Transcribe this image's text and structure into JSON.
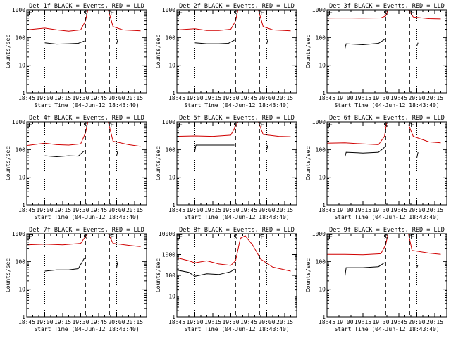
{
  "figure": {
    "time_axis_start": "18:45",
    "marker_labels": {
      "E": "E",
      "S": "S"
    },
    "colors": {
      "events": "#000000",
      "lld": "#d00000",
      "axes": "#000000",
      "background": "#ffffff"
    }
  },
  "chart_data": [
    {
      "type": "line",
      "title": "Det 1f BLACK = Events, RED = LLD",
      "xlabel": "Start Time (04-Jun-12 18:43:40)",
      "ylabel": "Counts/sec",
      "ylog": true,
      "ylim": [
        1,
        1000
      ],
      "x_ticks": [
        "18:45",
        "19:00",
        "19:15",
        "19:30",
        "19:45",
        "20:00",
        "20:15"
      ],
      "markers": {
        "E_start": "18:47",
        "S": "19:34",
        "E_end": "19:54"
      },
      "series": [
        {
          "name": "Events",
          "color": "#000000",
          "points": [
            [
              "19:00",
              65
            ],
            [
              "19:10",
              58
            ],
            [
              "19:20",
              60
            ],
            [
              "19:28",
              62
            ],
            [
              "19:33",
              75
            ]
          ],
          "points_after": [
            [
              "20:00",
              60
            ],
            [
              "20:01",
              85
            ]
          ]
        },
        {
          "name": "LLD",
          "color": "#d00000",
          "points": [
            [
              "18:45",
              190
            ],
            [
              "19:00",
              220
            ],
            [
              "19:10",
              190
            ],
            [
              "19:20",
              170
            ],
            [
              "19:30",
              190
            ],
            [
              "19:34",
              400
            ],
            [
              "19:36",
              1000
            ]
          ],
          "points_after": [
            [
              "19:53",
              1000
            ],
            [
              "19:57",
              250
            ],
            [
              "20:05",
              190
            ],
            [
              "20:20",
              175
            ]
          ]
        }
      ]
    },
    {
      "type": "line",
      "title": "Det 2f BLACK = Events, RED = LLD",
      "xlabel": "Start Time (04-Jun-12 18:43:40)",
      "ylabel": "Counts/sec",
      "ylog": true,
      "ylim": [
        1,
        1000
      ],
      "x_ticks": [
        "18:45",
        "19:00",
        "19:15",
        "19:30",
        "19:45",
        "20:00",
        "20:15"
      ],
      "markers": {
        "E_start": "18:47",
        "S": "19:34",
        "E_end": "19:54"
      },
      "series": [
        {
          "name": "Events",
          "color": "#000000",
          "points": [
            [
              "19:00",
              65
            ],
            [
              "19:10",
              60
            ],
            [
              "19:20",
              60
            ],
            [
              "19:28",
              62
            ],
            [
              "19:33",
              80
            ]
          ],
          "points_after": [
            [
              "20:00",
              60
            ],
            [
              "20:01",
              85
            ]
          ]
        },
        {
          "name": "LLD",
          "color": "#d00000",
          "points": [
            [
              "18:45",
              190
            ],
            [
              "19:00",
              210
            ],
            [
              "19:10",
              180
            ],
            [
              "19:20",
              180
            ],
            [
              "19:30",
              200
            ],
            [
              "19:34",
              400
            ],
            [
              "19:36",
              1000
            ]
          ],
          "points_after": [
            [
              "19:53",
              1000
            ],
            [
              "19:57",
              250
            ],
            [
              "20:05",
              190
            ],
            [
              "20:20",
              175
            ]
          ]
        }
      ]
    },
    {
      "type": "line",
      "title": "Det 3f BLACK = Events, RED = LLD",
      "xlabel": "Start Time (04-Jun-12 18:43:40)",
      "ylabel": "Counts/sec",
      "ylog": true,
      "ylim": [
        1,
        1000
      ],
      "x_ticks": [
        "18:45",
        "19:00",
        "19:15",
        "19:30",
        "19:45",
        "20:00",
        "20:15"
      ],
      "markers": {
        "E_start": "18:47",
        "S": "19:34",
        "E_end": "19:54"
      },
      "series": [
        {
          "name": "Events",
          "color": "#000000",
          "points": [
            [
              "19:00",
              40
            ],
            [
              "19:01",
              60
            ],
            [
              "19:15",
              55
            ],
            [
              "19:28",
              62
            ],
            [
              "19:33",
              85
            ]
          ],
          "points_after": [
            [
              "20:00",
              50
            ],
            [
              "20:01",
              65
            ]
          ]
        },
        {
          "name": "LLD",
          "color": "#d00000",
          "points": [
            [
              "18:45",
              500
            ],
            [
              "19:00",
              510
            ],
            [
              "19:15",
              500
            ],
            [
              "19:30",
              510
            ],
            [
              "19:34",
              600
            ],
            [
              "19:36",
              1000
            ]
          ],
          "points_after": [
            [
              "19:53",
              1000
            ],
            [
              "19:57",
              550
            ],
            [
              "20:10",
              480
            ],
            [
              "20:20",
              470
            ]
          ]
        }
      ]
    },
    {
      "type": "line",
      "title": "Det 4f BLACK = Events, RED = LLD",
      "xlabel": "Start Time (04-Jun-12 18:43:40)",
      "ylabel": "Counts/sec",
      "ylog": true,
      "ylim": [
        1,
        1000
      ],
      "x_ticks": [
        "18:45",
        "19:00",
        "19:15",
        "19:30",
        "19:45",
        "20:00",
        "20:15"
      ],
      "markers": {
        "E_start": "18:47",
        "S": "19:34",
        "E_end": "19:54"
      },
      "series": [
        {
          "name": "Events",
          "color": "#000000",
          "points": [
            [
              "19:00",
              60
            ],
            [
              "19:10",
              55
            ],
            [
              "19:20",
              60
            ],
            [
              "19:28",
              58
            ],
            [
              "19:33",
              90
            ]
          ],
          "points_after": [
            [
              "20:00",
              60
            ],
            [
              "20:01",
              90
            ]
          ]
        },
        {
          "name": "LLD",
          "color": "#d00000",
          "points": [
            [
              "18:45",
              140
            ],
            [
              "19:00",
              170
            ],
            [
              "19:10",
              150
            ],
            [
              "19:20",
              145
            ],
            [
              "19:30",
              160
            ],
            [
              "19:34",
              400
            ],
            [
              "19:36",
              1000
            ]
          ],
          "points_after": [
            [
              "19:53",
              1000
            ],
            [
              "19:57",
              200
            ],
            [
              "20:10",
              150
            ],
            [
              "20:20",
              130
            ]
          ]
        }
      ]
    },
    {
      "type": "line",
      "title": "Det 5f BLACK = Events, RED = LLD",
      "xlabel": "Start Time (04-Jun-12 18:43:40)",
      "ylabel": "Counts/sec",
      "ylog": true,
      "ylim": [
        1,
        1000
      ],
      "x_ticks": [
        "18:45",
        "19:00",
        "19:15",
        "19:30",
        "19:45",
        "20:00",
        "20:15"
      ],
      "markers": {
        "E_start": "18:47",
        "S": "19:34",
        "E_end": "19:54"
      },
      "series": [
        {
          "name": "Events",
          "color": "#000000",
          "points": [
            [
              "19:00",
              90
            ],
            [
              "19:01",
              145
            ],
            [
              "19:15",
              145
            ],
            [
              "19:33",
              145
            ]
          ],
          "points_after": [
            [
              "20:00",
              100
            ],
            [
              "20:01",
              145
            ]
          ]
        },
        {
          "name": "LLD",
          "color": "#d00000",
          "points": [
            [
              "18:45",
              300
            ],
            [
              "19:00",
              310
            ],
            [
              "19:15",
              300
            ],
            [
              "19:30",
              330
            ],
            [
              "19:34",
              700
            ],
            [
              "19:36",
              1000
            ]
          ],
          "points_after": [
            [
              "19:53",
              1000
            ],
            [
              "19:57",
              350
            ],
            [
              "20:10",
              300
            ],
            [
              "20:20",
              290
            ]
          ]
        }
      ]
    },
    {
      "type": "line",
      "title": "Det 6f BLACK = Events, RED = LLD",
      "xlabel": "Start Time (04-Jun-12 18:43:40)",
      "ylabel": "Counts/sec",
      "ylog": true,
      "ylim": [
        1,
        1000
      ],
      "x_ticks": [
        "18:45",
        "19:00",
        "19:15",
        "19:30",
        "19:45",
        "20:00",
        "20:15"
      ],
      "markers": {
        "E_start": "18:47",
        "S": "19:34",
        "E_end": "19:54"
      },
      "series": [
        {
          "name": "Events",
          "color": "#000000",
          "points": [
            [
              "19:00",
              55
            ],
            [
              "19:01",
              80
            ],
            [
              "19:15",
              75
            ],
            [
              "19:28",
              80
            ],
            [
              "19:33",
              120
            ]
          ],
          "points_after": [
            [
              "20:00",
              50
            ],
            [
              "20:01",
              80
            ]
          ]
        },
        {
          "name": "LLD",
          "color": "#d00000",
          "points": [
            [
              "18:45",
              170
            ],
            [
              "19:00",
              175
            ],
            [
              "19:15",
              160
            ],
            [
              "19:28",
              150
            ],
            [
              "19:33",
              300
            ],
            [
              "19:35",
              1000
            ]
          ],
          "points_after": [
            [
              "19:53",
              800
            ],
            [
              "19:57",
              300
            ],
            [
              "20:10",
              190
            ],
            [
              "20:20",
              175
            ]
          ]
        }
      ]
    },
    {
      "type": "line",
      "title": "Det 7f BLACK = Events, RED = LLD",
      "xlabel": "Start Time (04-Jun-12 18:43:40)",
      "ylabel": "Counts/sec",
      "ylog": true,
      "ylim": [
        1,
        1000
      ],
      "x_ticks": [
        "18:45",
        "19:00",
        "19:15",
        "19:30",
        "19:45",
        "20:00",
        "20:15"
      ],
      "markers": {
        "E_start": "18:47",
        "S": "19:34",
        "E_end": "19:54"
      },
      "series": [
        {
          "name": "Events",
          "color": "#000000",
          "points": [
            [
              "19:00",
              45
            ],
            [
              "19:10",
              50
            ],
            [
              "19:20",
              50
            ],
            [
              "19:28",
              55
            ],
            [
              "19:33",
              130
            ]
          ],
          "points_after": [
            [
              "20:00",
              60
            ],
            [
              "20:01",
              100
            ]
          ]
        },
        {
          "name": "LLD",
          "color": "#d00000",
          "points": [
            [
              "18:45",
              400
            ],
            [
              "19:00",
              420
            ],
            [
              "19:15",
              400
            ],
            [
              "19:30",
              450
            ],
            [
              "19:34",
              800
            ],
            [
              "19:36",
              1000
            ]
          ],
          "points_after": [
            [
              "19:53",
              1000
            ],
            [
              "19:57",
              450
            ],
            [
              "20:10",
              380
            ],
            [
              "20:20",
              340
            ]
          ]
        }
      ]
    },
    {
      "type": "line",
      "title": "Det 8f BLACK = Events, RED = LLD",
      "xlabel": "Start Time (04-Jun-12 18:43:40)",
      "ylabel": "Counts/sec",
      "ylog": true,
      "ylim": [
        1,
        10000
      ],
      "x_ticks": [
        "18:45",
        "19:00",
        "19:15",
        "19:30",
        "19:45",
        "20:00",
        "20:15"
      ],
      "markers": {
        "E_start": "18:47",
        "S": "19:34",
        "E_end": "19:54"
      },
      "series": [
        {
          "name": "Events",
          "color": "#000000",
          "points": [
            [
              "18:45",
              180
            ],
            [
              "18:55",
              140
            ],
            [
              "19:00",
              90
            ],
            [
              "19:10",
              120
            ],
            [
              "19:20",
              110
            ],
            [
              "19:30",
              150
            ],
            [
              "19:33",
              200
            ]
          ],
          "points_after": [
            [
              "19:59",
              150
            ],
            [
              "20:00",
              250
            ]
          ]
        },
        {
          "name": "LLD",
          "color": "#d00000",
          "points": [
            [
              "18:45",
              700
            ],
            [
              "18:55",
              500
            ],
            [
              "19:00",
              400
            ],
            [
              "19:10",
              500
            ],
            [
              "19:20",
              350
            ],
            [
              "19:30",
              300
            ],
            [
              "19:34",
              500
            ],
            [
              "19:38",
              6000
            ],
            [
              "19:42",
              8000
            ],
            [
              "19:48",
              3000
            ],
            [
              "19:55",
              600
            ],
            [
              "20:05",
              250
            ],
            [
              "20:20",
              160
            ]
          ]
        }
      ]
    },
    {
      "type": "line",
      "title": "Det 9f BLACK = Events, RED = LLD",
      "xlabel": "Start Time (04-Jun-12 18:43:40)",
      "ylabel": "Counts/sec",
      "ylog": true,
      "ylim": [
        1,
        1000
      ],
      "x_ticks": [
        "18:45",
        "19:00",
        "19:15",
        "19:30",
        "19:45",
        "20:00",
        "20:15"
      ],
      "markers": {
        "E_start": "18:47",
        "S": "19:34",
        "E_end": "19:54"
      },
      "series": [
        {
          "name": "Events",
          "color": "#000000",
          "points": [
            [
              "19:00",
              30
            ],
            [
              "19:01",
              60
            ],
            [
              "19:15",
              60
            ],
            [
              "19:28",
              65
            ],
            [
              "19:33",
              90
            ]
          ],
          "points_after": [
            [
              "20:00",
              60
            ],
            [
              "20:01",
              75
            ]
          ]
        },
        {
          "name": "LLD",
          "color": "#d00000",
          "points": [
            [
              "18:45",
              180
            ],
            [
              "19:00",
              180
            ],
            [
              "19:15",
              175
            ],
            [
              "19:30",
              190
            ],
            [
              "19:34",
              400
            ],
            [
              "19:36",
              1000
            ]
          ],
          "points_after": [
            [
              "19:53",
              1000
            ],
            [
              "19:56",
              250
            ],
            [
              "20:10",
              200
            ],
            [
              "20:20",
              180
            ]
          ]
        }
      ]
    }
  ]
}
